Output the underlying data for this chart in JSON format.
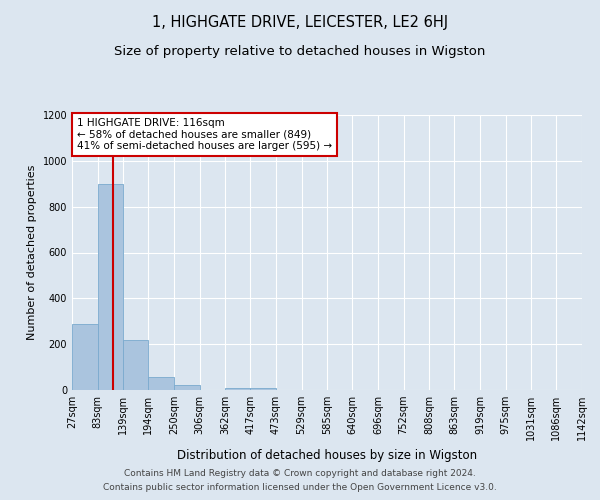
{
  "title": "1, HIGHGATE DRIVE, LEICESTER, LE2 6HJ",
  "subtitle": "Size of property relative to detached houses in Wigston",
  "xlabel": "Distribution of detached houses by size in Wigston",
  "ylabel": "Number of detached properties",
  "bar_edges": [
    27,
    83,
    139,
    194,
    250,
    306,
    362,
    417,
    473,
    529,
    585,
    640,
    696,
    752,
    808,
    863,
    919,
    975,
    1031,
    1086,
    1142
  ],
  "bar_heights": [
    290,
    900,
    220,
    55,
    20,
    0,
    10,
    10,
    0,
    0,
    0,
    0,
    0,
    0,
    0,
    0,
    0,
    0,
    0,
    0
  ],
  "bar_color": "#aac4de",
  "bar_edgecolor": "#7aaace",
  "bg_color": "#dce6f0",
  "fig_bg_color": "#dce6f0",
  "grid_color": "#ffffff",
  "red_line_x": 116,
  "ylim": [
    0,
    1200
  ],
  "yticks": [
    0,
    200,
    400,
    600,
    800,
    1000,
    1200
  ],
  "annotation_lines": [
    "1 HIGHGATE DRIVE: 116sqm",
    "← 58% of detached houses are smaller (849)",
    "41% of semi-detached houses are larger (595) →"
  ],
  "annotation_box_color": "#ffffff",
  "annotation_box_edgecolor": "#cc0000",
  "footer1": "Contains HM Land Registry data © Crown copyright and database right 2024.",
  "footer2": "Contains public sector information licensed under the Open Government Licence v3.0.",
  "title_fontsize": 10.5,
  "subtitle_fontsize": 9.5,
  "xlabel_fontsize": 8.5,
  "ylabel_fontsize": 8,
  "tick_fontsize": 7,
  "annot_fontsize": 7.5,
  "footer_fontsize": 6.5
}
